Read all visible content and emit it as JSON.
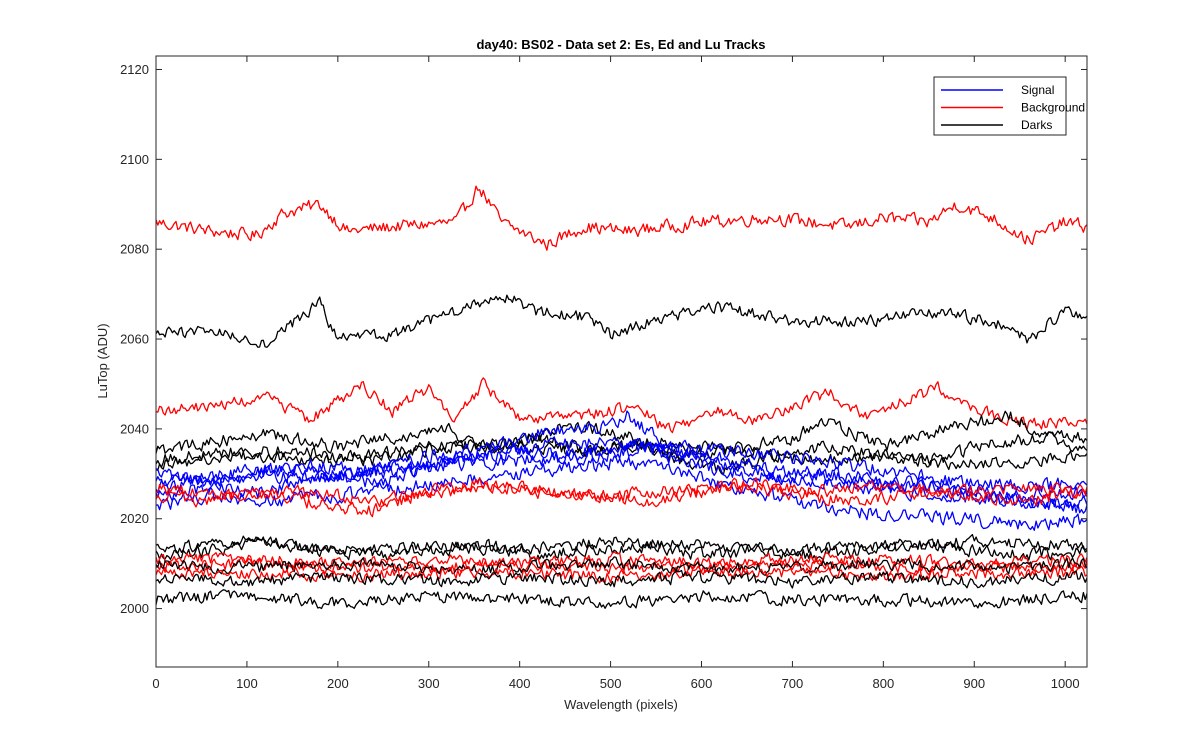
{
  "chart_data": {
    "type": "line",
    "title": "day40: BS02 - Data set 2: Es, Ed and Lu Tracks",
    "xlabel": "Wavelength (pixels)",
    "ylabel": "LuTop (ADU)",
    "xlim": [
      0,
      1024
    ],
    "ylim": [
      1987,
      2123
    ],
    "x_ticks": [
      0,
      100,
      200,
      300,
      400,
      500,
      600,
      700,
      800,
      900,
      1000
    ],
    "y_ticks": [
      2000,
      2020,
      2040,
      2060,
      2080,
      2100,
      2120
    ],
    "grid": false,
    "legend_position": "top-right",
    "legend": [
      {
        "label": "Signal",
        "color": "#0000ff"
      },
      {
        "label": "Background",
        "color": "#ff0000"
      },
      {
        "label": "Darks",
        "color": "#000000"
      }
    ],
    "series": [
      {
        "group": "Background",
        "color": "#ff0000",
        "noise": 1.3,
        "x": [
          0,
          60,
          110,
          140,
          180,
          210,
          260,
          330,
          355,
          380,
          430,
          470,
          520,
          600,
          680,
          760,
          800,
          850,
          880,
          920,
          960,
          1000,
          1024
        ],
        "y": [
          2086,
          2084,
          2083,
          2088,
          2090,
          2084,
          2085,
          2086,
          2094,
          2086,
          2081,
          2085,
          2084,
          2086,
          2087,
          2085,
          2087,
          2086,
          2090,
          2087,
          2082,
          2086,
          2085
        ]
      },
      {
        "group": "Darks",
        "color": "#000000",
        "noise": 1.2,
        "x": [
          0,
          60,
          120,
          180,
          200,
          260,
          330,
          380,
          420,
          470,
          500,
          560,
          620,
          700,
          780,
          860,
          920,
          960,
          1000,
          1024
        ],
        "y": [
          2061,
          2062,
          2059,
          2068,
          2060,
          2061,
          2066,
          2070,
          2066,
          2065,
          2061,
          2065,
          2067,
          2064,
          2064,
          2066,
          2064,
          2060,
          2066,
          2064
        ]
      },
      {
        "group": "Background",
        "color": "#ff0000",
        "noise": 1.2,
        "x": [
          0,
          60,
          120,
          170,
          225,
          260,
          300,
          330,
          360,
          400,
          470,
          530,
          560,
          620,
          660,
          740,
          780,
          860,
          920,
          960,
          1024
        ],
        "y": [
          2044,
          2045,
          2047,
          2042,
          2050,
          2044,
          2049,
          2042,
          2050,
          2042,
          2043,
          2045,
          2040,
          2044,
          2042,
          2048,
          2043,
          2049,
          2043,
          2041,
          2042
        ]
      },
      {
        "group": "Darks",
        "color": "#000000",
        "noise": 1.3,
        "x": [
          0,
          60,
          120,
          200,
          260,
          320,
          360,
          420,
          480,
          540,
          580,
          650,
          700,
          740,
          800,
          870,
          940,
          980,
          1024
        ],
        "y": [
          2035,
          2037,
          2039,
          2036,
          2038,
          2040,
          2036,
          2038,
          2035,
          2037,
          2034,
          2036,
          2038,
          2042,
          2036,
          2040,
          2043,
          2038,
          2038
        ]
      },
      {
        "group": "Darks",
        "color": "#000000",
        "noise": 1.3,
        "x": [
          0,
          80,
          160,
          240,
          320,
          400,
          460,
          520,
          560,
          620,
          680,
          740,
          800,
          860,
          920,
          980,
          1024
        ],
        "y": [
          2033,
          2035,
          2035,
          2033,
          2036,
          2037,
          2041,
          2038,
          2034,
          2031,
          2034,
          2036,
          2034,
          2033,
          2037,
          2038,
          2035
        ]
      },
      {
        "group": "Darks",
        "color": "#000000",
        "noise": 1.2,
        "x": [
          0,
          100,
          200,
          300,
          400,
          480,
          560,
          640,
          720,
          800,
          880,
          960,
          1024
        ],
        "y": [
          2032,
          2034,
          2033,
          2036,
          2036,
          2035,
          2037,
          2035,
          2033,
          2034,
          2032,
          2033,
          2034
        ]
      },
      {
        "group": "Signal",
        "color": "#0000ff",
        "noise": 1.4,
        "x": [
          0,
          60,
          120,
          180,
          240,
          300,
          360,
          420,
          480,
          520,
          560,
          620,
          700,
          780,
          860,
          940,
          1024
        ],
        "y": [
          2030,
          2028,
          2030,
          2029,
          2031,
          2034,
          2035,
          2039,
          2040,
          2043,
          2036,
          2032,
          2029,
          2027,
          2025,
          2024,
          2022
        ]
      },
      {
        "group": "Signal",
        "color": "#0000ff",
        "noise": 1.4,
        "x": [
          0,
          60,
          120,
          180,
          240,
          300,
          360,
          420,
          480,
          540,
          600,
          680,
          760,
          840,
          920,
          1000,
          1024
        ],
        "y": [
          2025,
          2027,
          2026,
          2029,
          2031,
          2032,
          2034,
          2036,
          2037,
          2036,
          2034,
          2031,
          2029,
          2027,
          2025,
          2023,
          2024
        ]
      },
      {
        "group": "Signal",
        "color": "#0000ff",
        "noise": 1.4,
        "x": [
          0,
          80,
          160,
          240,
          320,
          400,
          480,
          560,
          640,
          720,
          800,
          880,
          960,
          1024
        ],
        "y": [
          2028,
          2030,
          2032,
          2030,
          2032,
          2033,
          2034,
          2036,
          2035,
          2033,
          2031,
          2028,
          2027,
          2028
        ]
      },
      {
        "group": "Signal",
        "color": "#0000ff",
        "noise": 1.4,
        "x": [
          0,
          60,
          120,
          200,
          280,
          360,
          440,
          520,
          580,
          640,
          720,
          800,
          880,
          940,
          1000,
          1024
        ],
        "y": [
          2023,
          2025,
          2024,
          2025,
          2027,
          2029,
          2031,
          2033,
          2030,
          2027,
          2023,
          2021,
          2020,
          2019,
          2019,
          2020
        ]
      },
      {
        "group": "Signal",
        "color": "#0000ff",
        "noise": 1.4,
        "x": [
          0,
          80,
          160,
          240,
          320,
          400,
          460,
          520,
          580,
          660,
          740,
          820,
          900,
          960,
          1024
        ],
        "y": [
          2027,
          2029,
          2031,
          2028,
          2033,
          2035,
          2034,
          2037,
          2033,
          2029,
          2030,
          2028,
          2026,
          2025,
          2026
        ]
      },
      {
        "group": "Background",
        "color": "#ff0000",
        "noise": 1.3,
        "x": [
          0,
          60,
          120,
          180,
          240,
          300,
          360,
          420,
          480,
          540,
          600,
          660,
          720,
          780,
          840,
          900,
          960,
          1024
        ],
        "y": [
          2025,
          2024,
          2026,
          2023,
          2022,
          2026,
          2028,
          2026,
          2025,
          2024,
          2026,
          2027,
          2025,
          2024,
          2026,
          2025,
          2024,
          2026
        ]
      },
      {
        "group": "Background",
        "color": "#ff0000",
        "noise": 1.3,
        "x": [
          0,
          80,
          160,
          240,
          320,
          400,
          480,
          560,
          640,
          720,
          800,
          880,
          960,
          1024
        ],
        "y": [
          2027,
          2025,
          2026,
          2024,
          2026,
          2027,
          2025,
          2026,
          2028,
          2026,
          2027,
          2026,
          2027,
          2026
        ]
      },
      {
        "group": "Darks",
        "color": "#000000",
        "noise": 1.2,
        "x": [
          0,
          100,
          200,
          300,
          400,
          500,
          600,
          700,
          800,
          900,
          1024
        ],
        "y": [
          2013,
          2015,
          2013,
          2014,
          2013,
          2015,
          2014,
          2013,
          2014,
          2015,
          2014
        ]
      },
      {
        "group": "Darks",
        "color": "#000000",
        "noise": 1.3,
        "x": [
          0,
          60,
          120,
          180,
          240,
          300,
          360,
          420,
          480,
          540,
          600,
          660,
          720,
          780,
          840,
          900,
          960,
          1024
        ],
        "y": [
          2012,
          2013,
          2015,
          2013,
          2012,
          2013,
          2014,
          2012,
          2013,
          2014,
          2012,
          2013,
          2012,
          2013,
          2014,
          2013,
          2012,
          2013
        ]
      },
      {
        "group": "Background",
        "color": "#ff0000",
        "noise": 1.2,
        "x": [
          0,
          100,
          200,
          300,
          400,
          500,
          600,
          700,
          800,
          900,
          1024
        ],
        "y": [
          2011,
          2011,
          2010,
          2011,
          2010,
          2011,
          2010,
          2011,
          2011,
          2010,
          2011
        ]
      },
      {
        "group": "Background",
        "color": "#ff0000",
        "noise": 1.2,
        "x": [
          0,
          100,
          200,
          300,
          400,
          500,
          600,
          700,
          800,
          900,
          1024
        ],
        "y": [
          2009,
          2010,
          2009,
          2009,
          2010,
          2009,
          2009,
          2010,
          2009,
          2009,
          2010
        ]
      },
      {
        "group": "Darks",
        "color": "#000000",
        "noise": 1.2,
        "x": [
          0,
          100,
          200,
          300,
          400,
          500,
          600,
          700,
          800,
          900,
          1024
        ],
        "y": [
          2010,
          2009,
          2010,
          2009,
          2009,
          2010,
          2009,
          2009,
          2010,
          2009,
          2010
        ]
      },
      {
        "group": "Background",
        "color": "#ff0000",
        "noise": 1.2,
        "x": [
          0,
          100,
          200,
          300,
          400,
          500,
          600,
          700,
          800,
          900,
          1024
        ],
        "y": [
          2008,
          2008,
          2007,
          2008,
          2008,
          2007,
          2008,
          2008,
          2007,
          2008,
          2008
        ]
      },
      {
        "group": "Darks",
        "color": "#000000",
        "noise": 1.2,
        "x": [
          0,
          100,
          200,
          300,
          400,
          500,
          600,
          700,
          800,
          900,
          1024
        ],
        "y": [
          2007,
          2006,
          2007,
          2006,
          2007,
          2006,
          2007,
          2006,
          2007,
          2006,
          2007
        ]
      },
      {
        "group": "Darks",
        "color": "#000000",
        "noise": 1.2,
        "x": [
          0,
          100,
          200,
          300,
          400,
          500,
          600,
          700,
          800,
          900,
          1024
        ],
        "y": [
          2002,
          2003,
          2001,
          2003,
          2002,
          2001,
          2003,
          2002,
          2002,
          2001,
          2003
        ]
      }
    ]
  }
}
